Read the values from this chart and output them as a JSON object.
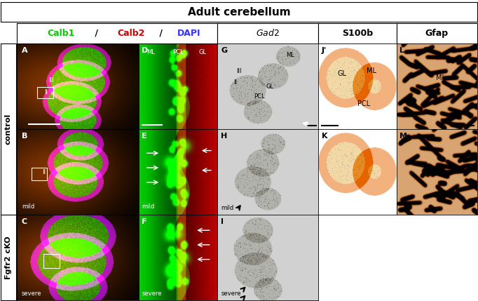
{
  "title": "Adult cerebellum",
  "calb_header": "Calb1 / Calb2 / DAPI",
  "gad2_header": "Gad2",
  "s100b_header": "S100b",
  "gfap_header": "Gfap",
  "calb1_color": "#00cc00",
  "calb2_color": "#cc0000",
  "dapi_color": "#3333ff",
  "header_text_color": "#000000",
  "bg_color": "#ffffff",
  "control_label": "control",
  "fgfr2_label": "Fgfr2 cKO",
  "panel_labels": [
    "A",
    "B",
    "C",
    "D",
    "E",
    "F",
    "G",
    "H",
    "I",
    "J'",
    "K",
    "L",
    "M"
  ],
  "mild_label": "mild",
  "severe_label": "severe",
  "title_fontsize": 11,
  "header_fontsize": 9,
  "panel_label_fontsize": 8,
  "sublabel_fontsize": 6.5,
  "row_label_fontsize": 8
}
